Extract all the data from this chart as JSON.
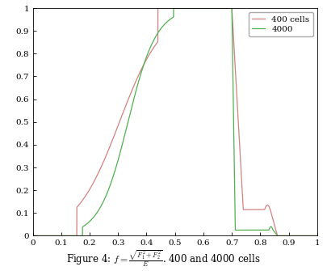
{
  "title": "Figure 4: $f = \\frac{\\sqrt{F_1^2+F_2^2}}{E}$. 400 and 4000 cells",
  "xlim": [
    0,
    1
  ],
  "ylim": [
    0,
    1
  ],
  "xticks": [
    0,
    0.1,
    0.2,
    0.3,
    0.4,
    0.5,
    0.6,
    0.7,
    0.8,
    0.9,
    1.0
  ],
  "yticks": [
    0,
    0.1,
    0.2,
    0.3,
    0.4,
    0.5,
    0.6,
    0.7,
    0.8,
    0.9,
    1.0
  ],
  "color_400": "#d48080",
  "color_4000": "#50b050",
  "legend_labels": [
    "400 cells",
    "4000"
  ],
  "background": "#ffffff",
  "figsize": [
    4.05,
    3.35
  ],
  "dpi": 100
}
